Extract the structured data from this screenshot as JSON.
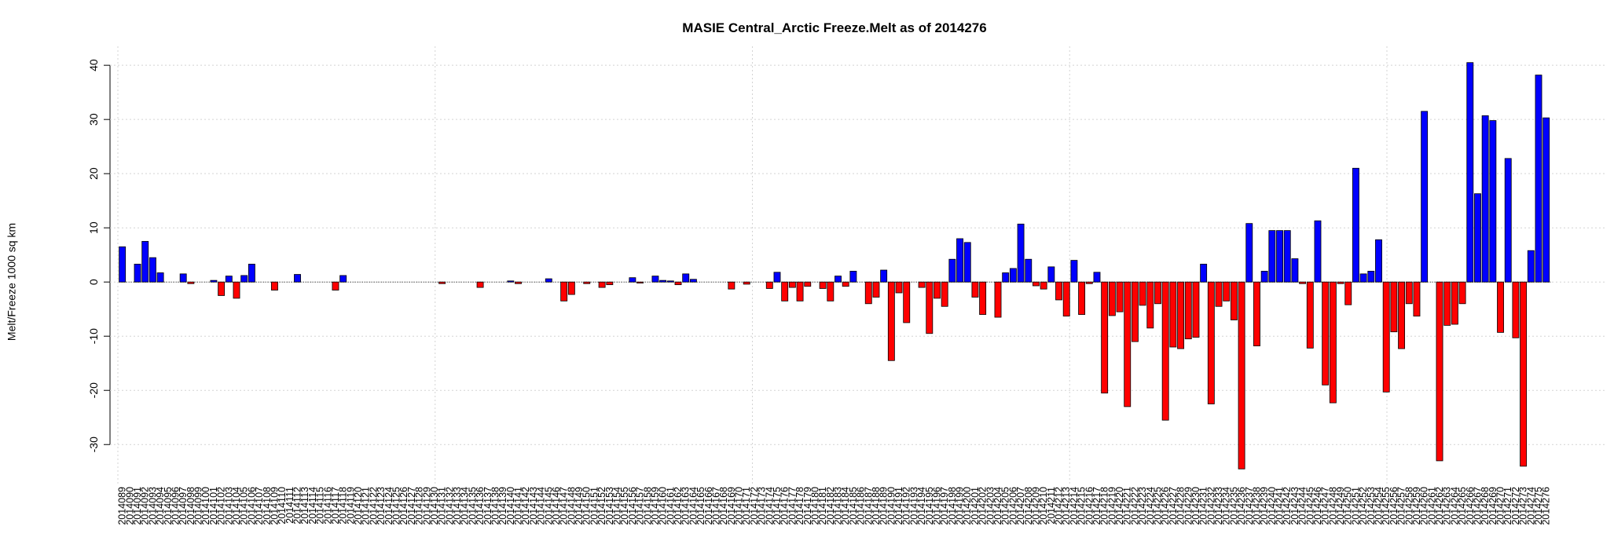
{
  "chart_data": {
    "type": "bar",
    "title": "MASIE Central_Arctic Freeze.Melt as of 2014276",
    "ylabel": "Melt/Freeze 1000 sq km",
    "categories": [
      "2014089",
      "2014090",
      "2014091",
      "2014092",
      "2014093",
      "2014094",
      "2014095",
      "2014096",
      "2014097",
      "2014098",
      "2014099",
      "2014100",
      "2014101",
      "2014102",
      "2014103",
      "2014104",
      "2014105",
      "2014106",
      "2014107",
      "2014108",
      "2014109",
      "2014110",
      "2014111",
      "2014112",
      "2014113",
      "2014114",
      "2014115",
      "2014116",
      "2014117",
      "2014118",
      "2014119",
      "2014120",
      "2014121",
      "2014122",
      "2014123",
      "2014124",
      "2014125",
      "2014126",
      "2014127",
      "2014128",
      "2014129",
      "2014130",
      "2014131",
      "2014132",
      "2014133",
      "2014134",
      "2014135",
      "2014136",
      "2014137",
      "2014138",
      "2014139",
      "2014140",
      "2014141",
      "2014142",
      "2014143",
      "2014144",
      "2014145",
      "2014146",
      "2014147",
      "2014148",
      "2014149",
      "2014150",
      "2014151",
      "2014152",
      "2014153",
      "2014154",
      "2014155",
      "2014156",
      "2014157",
      "2014158",
      "2014159",
      "2014160",
      "2014161",
      "2014162",
      "2014163",
      "2014164",
      "2014165",
      "2014166",
      "2014167",
      "2014168",
      "2014169",
      "2014170",
      "2014171",
      "2014172",
      "2014173",
      "2014174",
      "2014175",
      "2014176",
      "2014177",
      "2014178",
      "2014179",
      "2014180",
      "2014181",
      "2014182",
      "2014183",
      "2014184",
      "2014185",
      "2014186",
      "2014187",
      "2014188",
      "2014189",
      "2014190",
      "2014191",
      "2014192",
      "2014193",
      "2014194",
      "2014195",
      "2014196",
      "2014197",
      "2014198",
      "2014199",
      "2014200",
      "2014201",
      "2014202",
      "2014203",
      "2014204",
      "2014205",
      "2014206",
      "2014207",
      "2014208",
      "2014209",
      "2014210",
      "2014211",
      "2014212",
      "2014213",
      "2014214",
      "2014215",
      "2014216",
      "2014217",
      "2014218",
      "2014219",
      "2014220",
      "2014221",
      "2014222",
      "2014223",
      "2014224",
      "2014225",
      "2014226",
      "2014227",
      "2014228",
      "2014229",
      "2014230",
      "2014231",
      "2014232",
      "2014233",
      "2014234",
      "2014235",
      "2014236",
      "2014237",
      "2014238",
      "2014239",
      "2014240",
      "2014241",
      "2014242",
      "2014243",
      "2014244",
      "2014245",
      "2014246",
      "2014247",
      "2014248",
      "2014249",
      "2014250",
      "2014251",
      "2014252",
      "2014253",
      "2014254",
      "2014255",
      "2014256",
      "2014257",
      "2014258",
      "2014259",
      "2014260",
      "2014261",
      "2014262",
      "2014263",
      "2014264",
      "2014265",
      "2014266",
      "2014267",
      "2014268",
      "2014269",
      "2014270",
      "2014271",
      "2014272",
      "2014273",
      "2014274",
      "2014275",
      "2014276"
    ],
    "values": [
      6.5,
      0,
      3.3,
      7.5,
      4.5,
      1.7,
      0,
      0,
      1.5,
      -0.3,
      0,
      0,
      0.3,
      -2.5,
      1.1,
      -3,
      1.2,
      3.3,
      0,
      0,
      -1.5,
      0,
      0,
      1.4,
      0,
      0,
      0,
      0,
      -1.5,
      1.2,
      0,
      0,
      0,
      0,
      0,
      0,
      0,
      0,
      0,
      0,
      0,
      0,
      -0.3,
      0,
      0,
      0,
      0,
      -1,
      0,
      0,
      0,
      0.2,
      -0.3,
      0,
      0,
      0,
      0.6,
      0,
      -3.5,
      -2.3,
      0,
      -0.3,
      0,
      -1,
      -0.5,
      0,
      0,
      0.8,
      -0.2,
      0,
      1.1,
      0.3,
      0.2,
      -0.5,
      1.5,
      0.5,
      0,
      0,
      0,
      0,
      -1.3,
      0,
      -0.4,
      0,
      0,
      -1.2,
      1.8,
      -3.5,
      -1,
      -3.5,
      -0.8,
      0,
      -1.2,
      -3.5,
      1.1,
      -0.8,
      2,
      0,
      -4,
      -2.8,
      2.2,
      -14.5,
      -2,
      -7.5,
      0,
      -1,
      -9.5,
      -3,
      -4.5,
      4.2,
      8,
      7.3,
      -2.8,
      -6,
      0,
      -6.5,
      1.7,
      2.5,
      10.7,
      4.2,
      -0.7,
      -1.3,
      2.8,
      -3.3,
      -6.3,
      4,
      -6,
      -0.3,
      1.8,
      -20.5,
      -6.2,
      -5.5,
      -23,
      -11,
      -4.3,
      -8.5,
      -4,
      -25.5,
      -12,
      -12.3,
      -10.5,
      -10.2,
      3.3,
      -22.5,
      -4.5,
      -3.5,
      -7,
      -34.5,
      10.8,
      -11.8,
      2,
      9.5,
      9.5,
      9.5,
      4.3,
      -0.3,
      -12.2,
      11.3,
      -19,
      -22.3,
      -0.3,
      -4.2,
      21,
      1.5,
      2,
      7.8,
      -20.3,
      -9.2,
      -12.3,
      -4,
      -6.3,
      31.5,
      0,
      -33,
      -8,
      -7.8,
      -4,
      40.5,
      16.3,
      30.7,
      29.8,
      -9.3,
      22.8,
      -10.3,
      -34,
      5.8,
      38.2,
      30.3
    ],
    "positive_color": "#0000ff",
    "negative_color": "#ff0000",
    "ylim": [
      -37.5,
      43.5
    ],
    "yticks": [
      -30,
      -20,
      -10,
      0,
      10,
      20,
      30,
      40
    ],
    "grid": true
  }
}
